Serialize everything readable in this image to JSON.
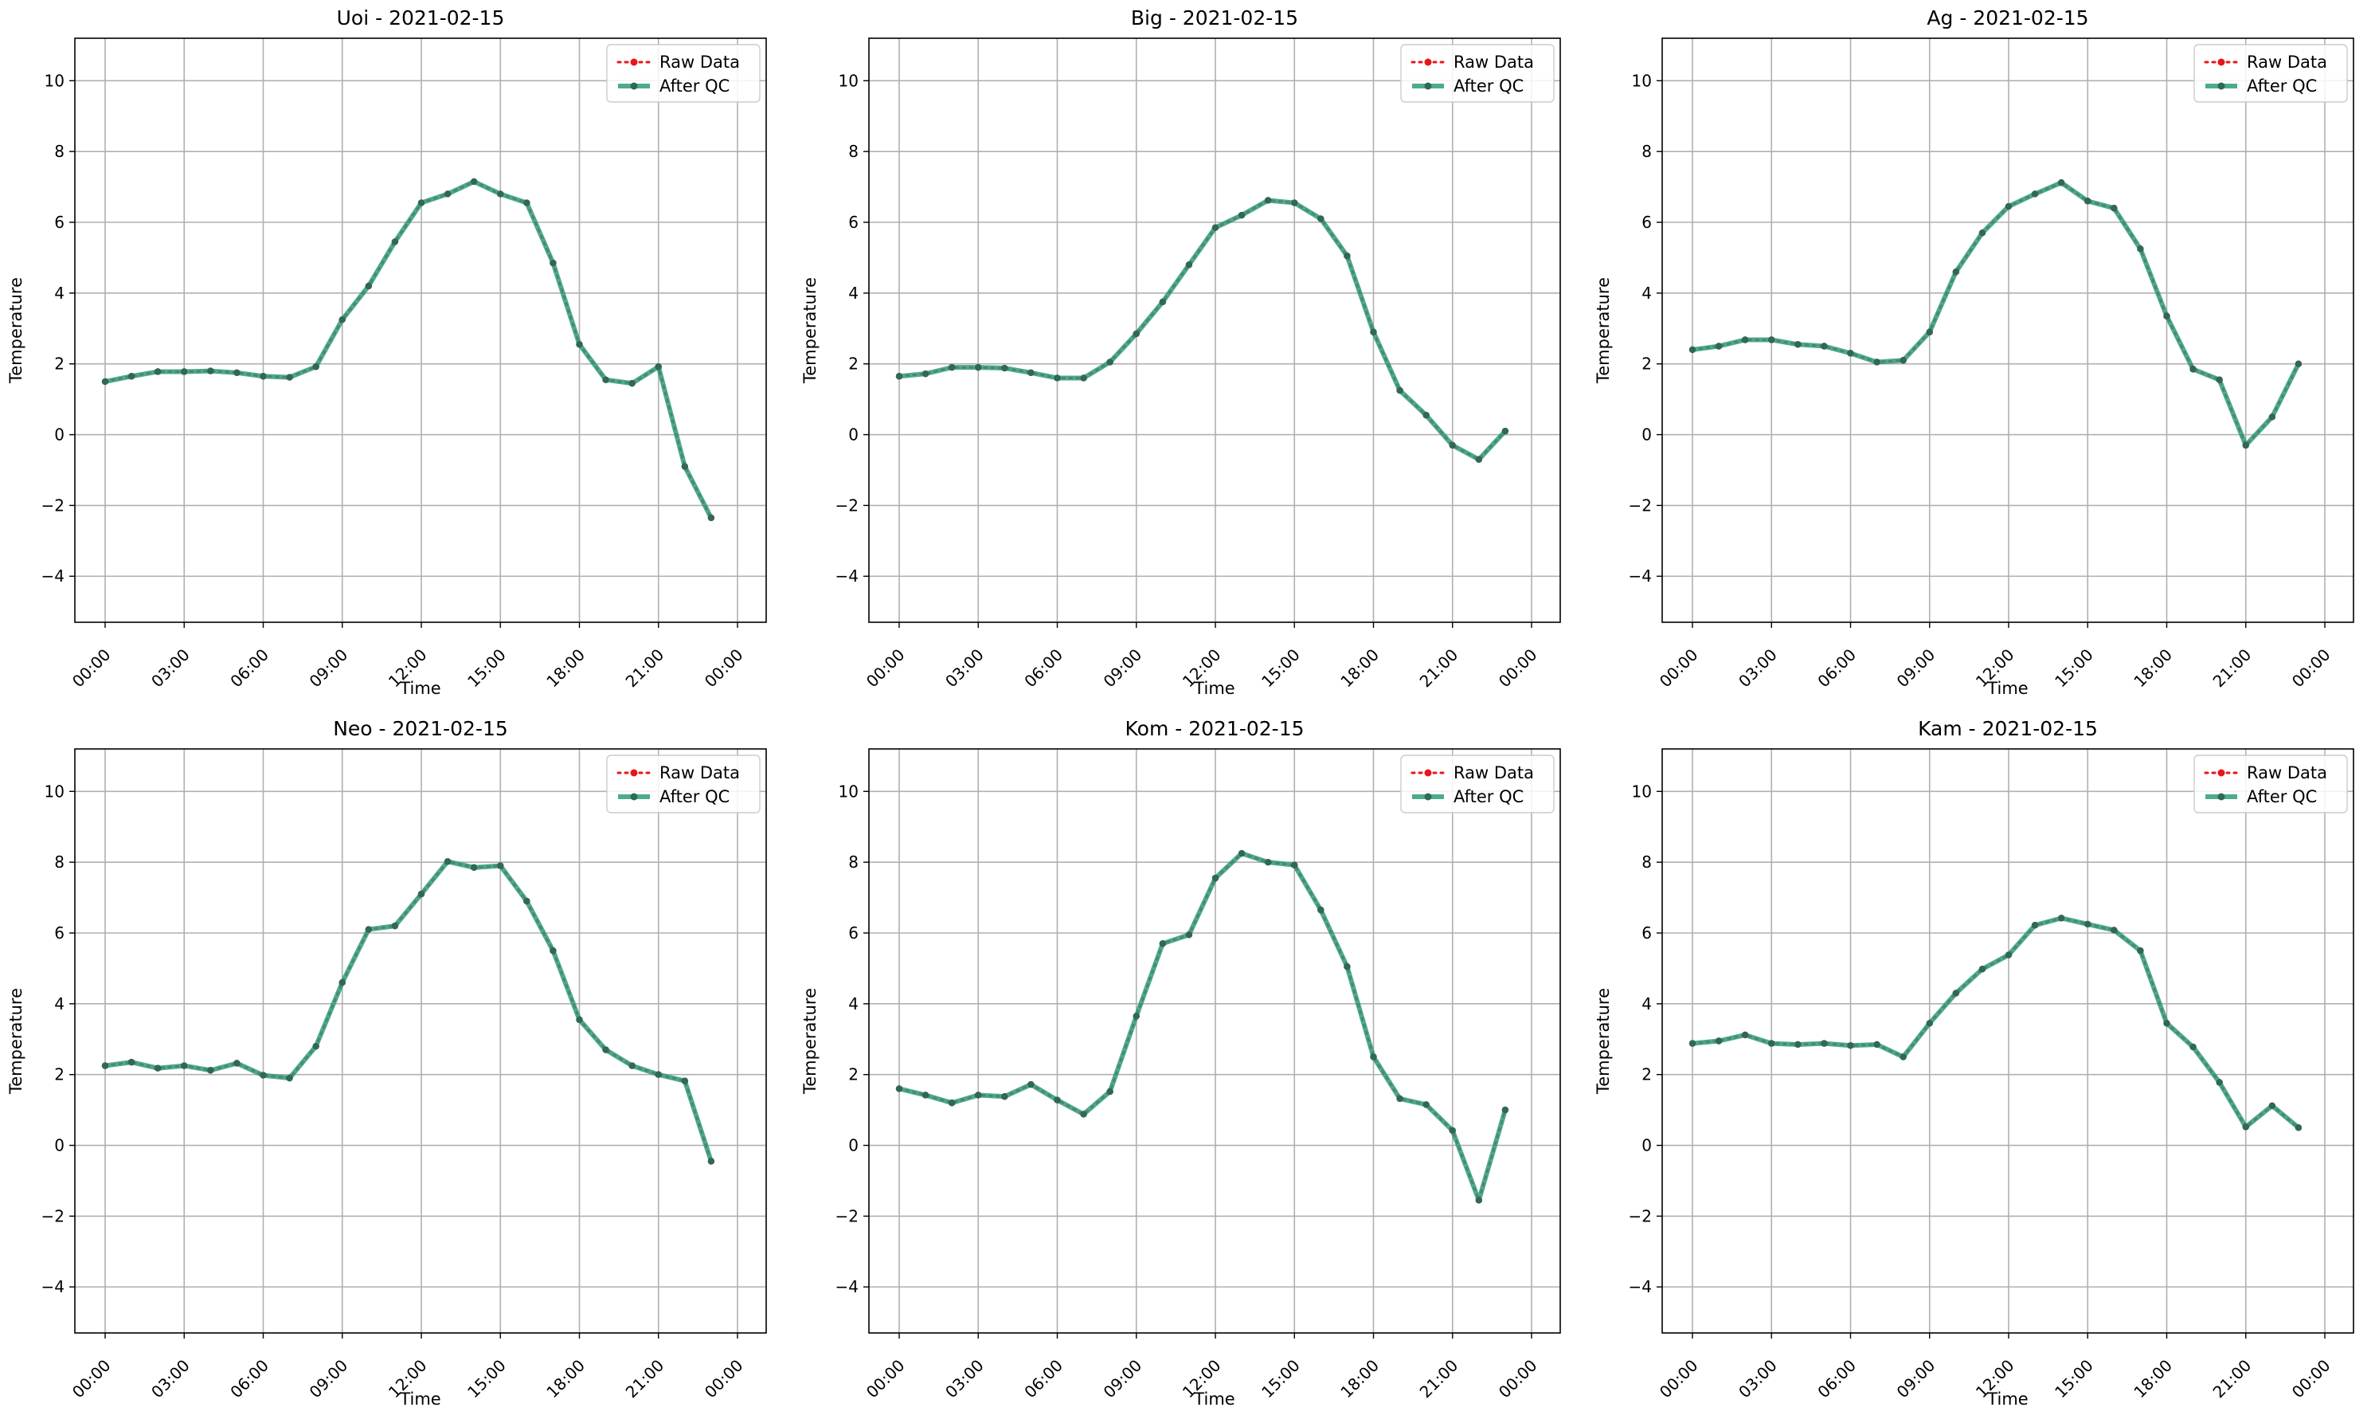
{
  "colors": {
    "raw": "#e8161a",
    "qc_line": "#2e9c7a",
    "qc_marker": "#2d6a55",
    "grid": "#b0b0b0"
  },
  "chart_data": [
    {
      "type": "line",
      "title": "Uoi - 2021-02-15",
      "xlabel": "Time",
      "ylabel": "Temperature",
      "x_ticks": [
        "00:00",
        "03:00",
        "06:00",
        "09:00",
        "12:00",
        "15:00",
        "18:00",
        "21:00",
        "00:00"
      ],
      "y_ticks": [
        "−4",
        "−2",
        "0",
        "2",
        "4",
        "6",
        "8",
        "10"
      ],
      "ylim": [
        -5.3,
        11.2
      ],
      "grid": true,
      "legend_position": "top-right",
      "series": [
        {
          "name": "Raw Data",
          "values": [
            1.5,
            1.65,
            1.78,
            1.78,
            1.8,
            1.75,
            1.65,
            1.62,
            1.92,
            3.25,
            4.2,
            5.45,
            6.55,
            6.8,
            7.15,
            6.8,
            6.55,
            4.85,
            2.55,
            1.55,
            1.45,
            1.92,
            -0.9,
            -2.35
          ]
        },
        {
          "name": "After QC",
          "values": [
            1.5,
            1.65,
            1.78,
            1.78,
            1.8,
            1.75,
            1.65,
            1.62,
            1.92,
            3.25,
            4.2,
            5.45,
            6.55,
            6.8,
            7.15,
            6.8,
            6.55,
            4.85,
            2.55,
            1.55,
            1.45,
            1.92,
            -0.9,
            -2.35
          ]
        }
      ]
    },
    {
      "type": "line",
      "title": "Big - 2021-02-15",
      "xlabel": "Time",
      "ylabel": "Temperature",
      "x_ticks": [
        "00:00",
        "03:00",
        "06:00",
        "09:00",
        "12:00",
        "15:00",
        "18:00",
        "21:00",
        "00:00"
      ],
      "y_ticks": [
        "−4",
        "−2",
        "0",
        "2",
        "4",
        "6",
        "8",
        "10"
      ],
      "ylim": [
        -5.3,
        11.2
      ],
      "grid": true,
      "legend_position": "top-right",
      "series": [
        {
          "name": "Raw Data",
          "values": [
            1.65,
            1.72,
            1.9,
            1.9,
            1.88,
            1.75,
            1.6,
            1.6,
            2.05,
            2.85,
            3.75,
            4.8,
            5.85,
            6.2,
            6.62,
            6.55,
            6.1,
            5.05,
            2.9,
            1.25,
            0.55,
            -0.3,
            -0.7,
            0.1
          ]
        },
        {
          "name": "After QC",
          "values": [
            1.65,
            1.72,
            1.9,
            1.9,
            1.88,
            1.75,
            1.6,
            1.6,
            2.05,
            2.85,
            3.75,
            4.8,
            5.85,
            6.2,
            6.62,
            6.55,
            6.1,
            5.05,
            2.9,
            1.25,
            0.55,
            -0.3,
            -0.7,
            0.1
          ]
        }
      ]
    },
    {
      "type": "line",
      "title": "Ag - 2021-02-15",
      "xlabel": "Time",
      "ylabel": "Temperature",
      "x_ticks": [
        "00:00",
        "03:00",
        "06:00",
        "09:00",
        "12:00",
        "15:00",
        "18:00",
        "21:00",
        "00:00"
      ],
      "y_ticks": [
        "−4",
        "−2",
        "0",
        "2",
        "4",
        "6",
        "8",
        "10"
      ],
      "ylim": [
        -5.3,
        11.2
      ],
      "grid": true,
      "legend_position": "top-right",
      "series": [
        {
          "name": "Raw Data",
          "values": [
            2.4,
            2.5,
            2.68,
            2.68,
            2.55,
            2.5,
            2.3,
            2.05,
            2.1,
            2.9,
            4.6,
            5.7,
            6.45,
            6.8,
            7.12,
            6.6,
            6.4,
            5.25,
            3.35,
            1.85,
            1.55,
            -0.3,
            0.5,
            2.0
          ]
        },
        {
          "name": "After QC",
          "values": [
            2.4,
            2.5,
            2.68,
            2.68,
            2.55,
            2.5,
            2.3,
            2.05,
            2.1,
            2.9,
            4.6,
            5.7,
            6.45,
            6.8,
            7.12,
            6.6,
            6.4,
            5.25,
            3.35,
            1.85,
            1.55,
            -0.3,
            0.5,
            2.0
          ]
        }
      ]
    },
    {
      "type": "line",
      "title": "Neo - 2021-02-15",
      "xlabel": "Time",
      "ylabel": "Temperature",
      "x_ticks": [
        "00:00",
        "03:00",
        "06:00",
        "09:00",
        "12:00",
        "15:00",
        "18:00",
        "21:00",
        "00:00"
      ],
      "y_ticks": [
        "−4",
        "−2",
        "0",
        "2",
        "4",
        "6",
        "8",
        "10"
      ],
      "ylim": [
        -5.3,
        11.2
      ],
      "grid": true,
      "legend_position": "top-right",
      "series": [
        {
          "name": "Raw Data",
          "values": [
            2.25,
            2.35,
            2.18,
            2.25,
            2.12,
            2.32,
            1.98,
            1.9,
            2.8,
            4.6,
            6.1,
            6.2,
            7.1,
            8.02,
            7.85,
            7.9,
            6.9,
            5.5,
            3.55,
            2.7,
            2.25,
            2.0,
            1.82,
            -0.45
          ]
        },
        {
          "name": "After QC",
          "values": [
            2.25,
            2.35,
            2.18,
            2.25,
            2.12,
            2.32,
            1.98,
            1.9,
            2.8,
            4.6,
            6.1,
            6.2,
            7.1,
            8.02,
            7.85,
            7.9,
            6.9,
            5.5,
            3.55,
            2.7,
            2.25,
            2.0,
            1.82,
            -0.45
          ]
        }
      ]
    },
    {
      "type": "line",
      "title": "Kom - 2021-02-15",
      "xlabel": "Time",
      "ylabel": "Temperature",
      "x_ticks": [
        "00:00",
        "03:00",
        "06:00",
        "09:00",
        "12:00",
        "15:00",
        "18:00",
        "21:00",
        "00:00"
      ],
      "y_ticks": [
        "−4",
        "−2",
        "0",
        "2",
        "4",
        "6",
        "8",
        "10"
      ],
      "ylim": [
        -5.3,
        11.2
      ],
      "grid": true,
      "legend_position": "top-right",
      "series": [
        {
          "name": "Raw Data",
          "values": [
            1.6,
            1.42,
            1.2,
            1.42,
            1.38,
            1.72,
            1.28,
            0.88,
            1.52,
            3.65,
            5.7,
            5.95,
            7.55,
            8.25,
            8.0,
            7.92,
            6.65,
            5.05,
            2.5,
            1.32,
            1.15,
            0.42,
            -1.55,
            1.0
          ]
        },
        {
          "name": "After QC",
          "values": [
            1.6,
            1.42,
            1.2,
            1.42,
            1.38,
            1.72,
            1.28,
            0.88,
            1.52,
            3.65,
            5.7,
            5.95,
            7.55,
            8.25,
            8.0,
            7.92,
            6.65,
            5.05,
            2.5,
            1.32,
            1.15,
            0.42,
            -1.55,
            1.0
          ]
        }
      ]
    },
    {
      "type": "line",
      "title": "Kam - 2021-02-15",
      "xlabel": "Time",
      "ylabel": "Temperature",
      "x_ticks": [
        "00:00",
        "03:00",
        "06:00",
        "09:00",
        "12:00",
        "15:00",
        "18:00",
        "21:00",
        "00:00"
      ],
      "y_ticks": [
        "−4",
        "−2",
        "0",
        "2",
        "4",
        "6",
        "8",
        "10"
      ],
      "ylim": [
        -5.3,
        11.2
      ],
      "grid": true,
      "legend_position": "top-right",
      "series": [
        {
          "name": "Raw Data",
          "values": [
            2.88,
            2.95,
            3.12,
            2.88,
            2.85,
            2.88,
            2.82,
            2.85,
            2.5,
            3.45,
            4.3,
            4.98,
            5.38,
            6.22,
            6.42,
            6.25,
            6.08,
            5.5,
            3.45,
            2.78,
            1.78,
            0.52,
            1.12,
            0.5
          ]
        },
        {
          "name": "After QC",
          "values": [
            2.88,
            2.95,
            3.12,
            2.88,
            2.85,
            2.88,
            2.82,
            2.85,
            2.5,
            3.45,
            4.3,
            4.98,
            5.38,
            6.22,
            6.42,
            6.25,
            6.08,
            5.5,
            3.45,
            2.78,
            1.78,
            0.52,
            1.12,
            0.5
          ]
        }
      ]
    }
  ]
}
